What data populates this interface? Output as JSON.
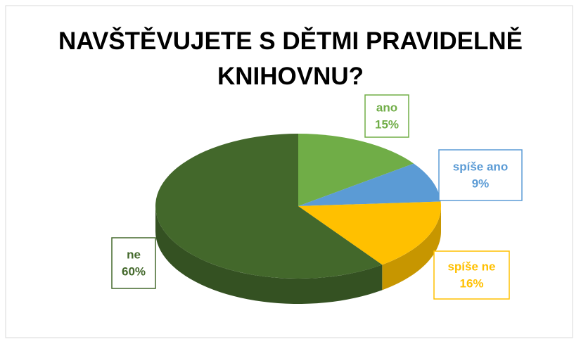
{
  "chart_data": {
    "type": "pie3d",
    "title": "NAVŠTĚVUJETE S DĚTMI PRAVIDELNĚ KNIHOVNU?",
    "categories": [
      "ano",
      "spíše ano",
      "spíše ne",
      "ne"
    ],
    "values": [
      15,
      9,
      16,
      60
    ],
    "value_labels": [
      "15%",
      "9%",
      "16%",
      "60%"
    ],
    "colors": [
      "#70ad47",
      "#5b9bd5",
      "#ffc000",
      "#43682b"
    ]
  }
}
